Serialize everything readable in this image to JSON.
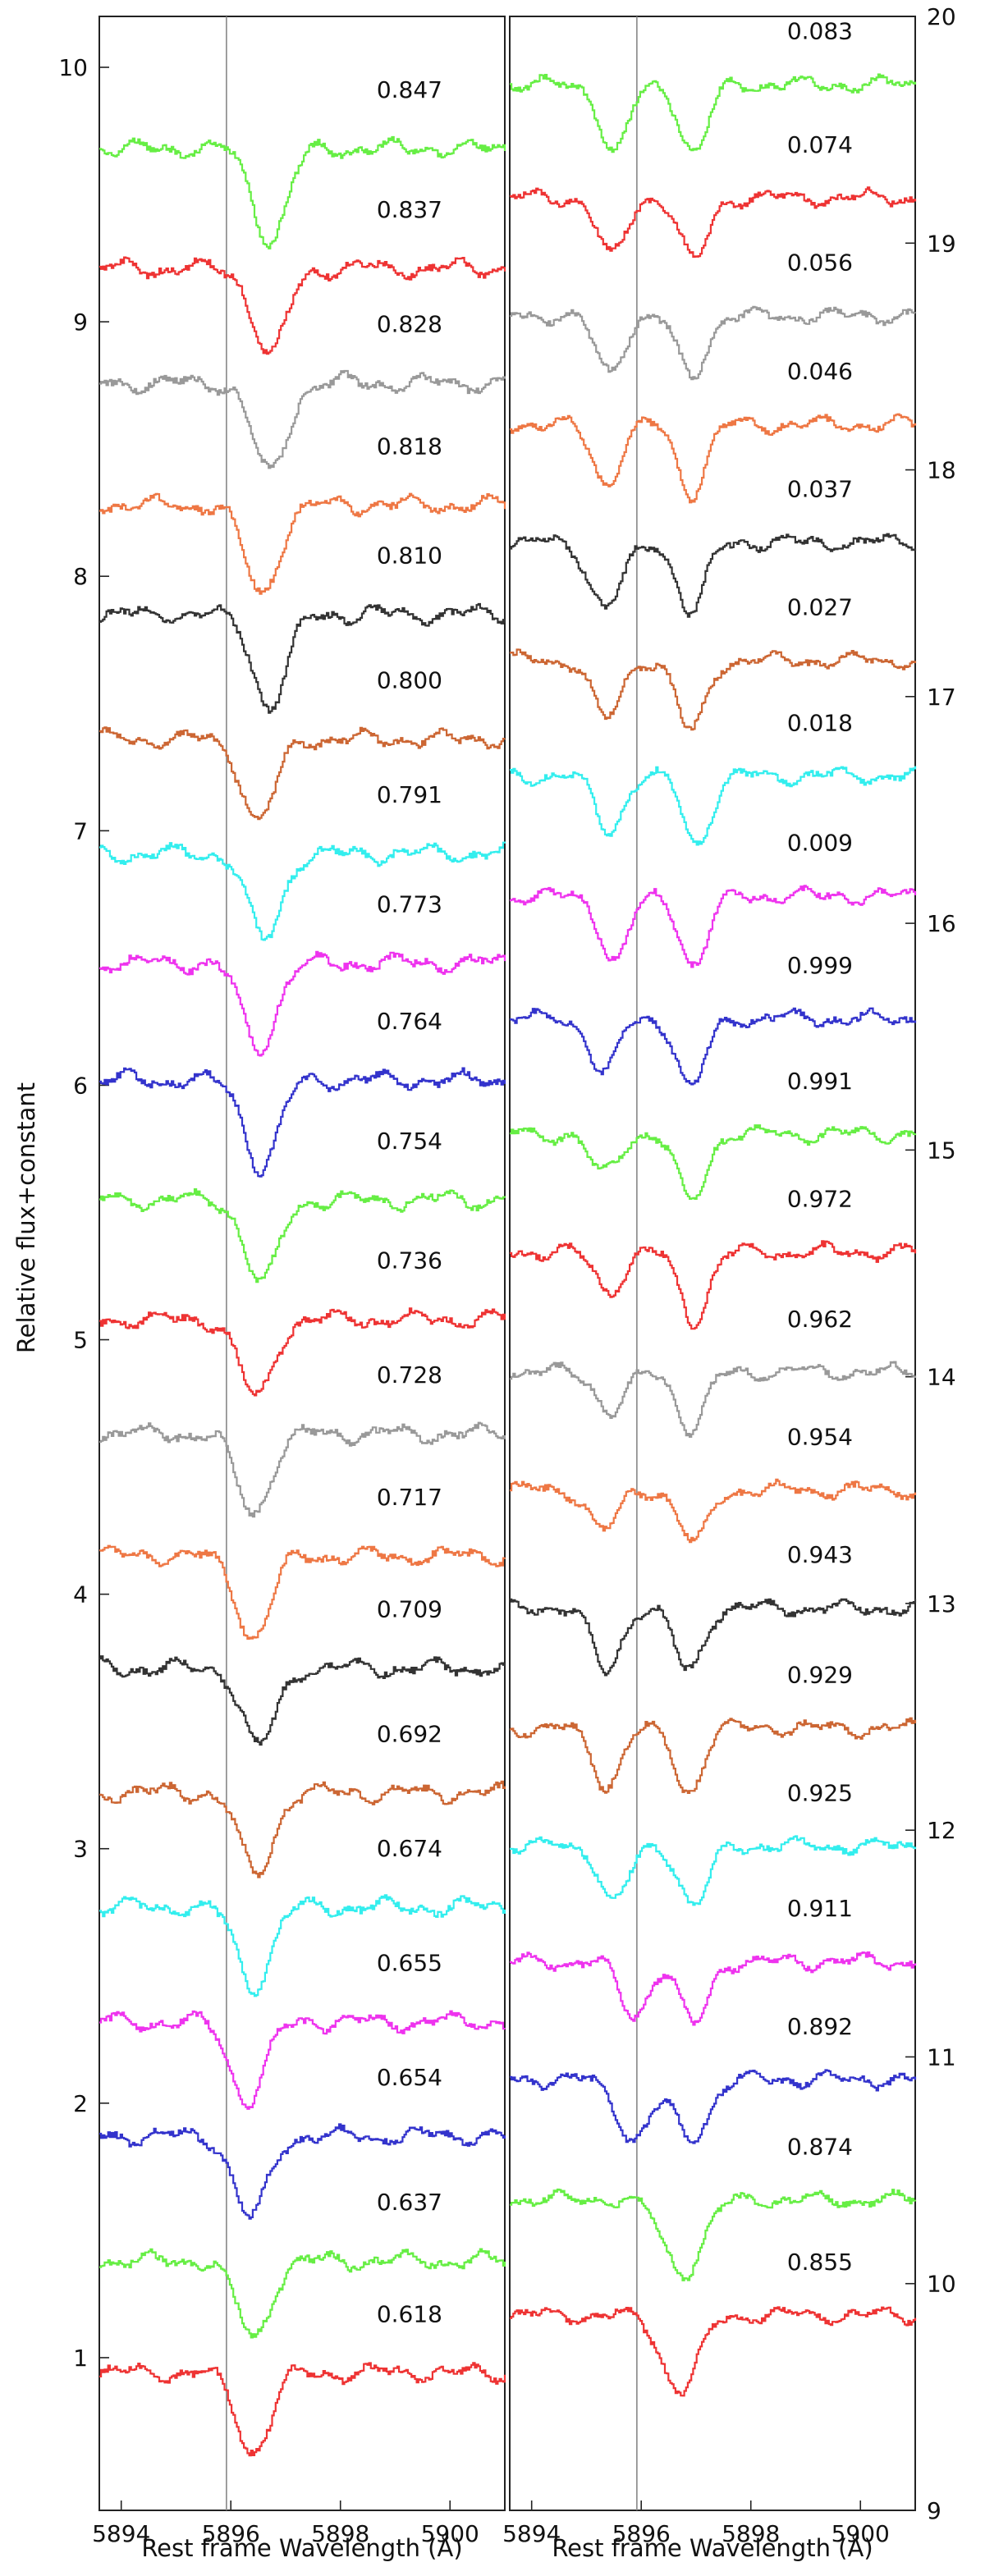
{
  "chart_data": [
    {
      "type": "line",
      "panel": "left",
      "xlabel": "Rest frame Wavelength (Å)",
      "ylabel": "Relative flux+constant",
      "xlim": [
        5893.6,
        5901.0
      ],
      "ylim": [
        0.4,
        10.2
      ],
      "x_ticks": [
        5894,
        5896,
        5898,
        5900
      ],
      "y_ticks": [
        1,
        2,
        3,
        4,
        5,
        6,
        7,
        8,
        9,
        10
      ],
      "y_axis_side": "left",
      "reference_line_x": 5895.92,
      "series": [
        {
          "name": "0.847",
          "color": "#66ee44",
          "baseline": 9.68,
          "dips": [
            {
              "center": 5896.7,
              "depth": 0.36,
              "width": 0.3
            }
          ]
        },
        {
          "name": "0.837",
          "color": "#ee3333",
          "baseline": 9.21,
          "dips": [
            {
              "center": 5896.7,
              "depth": 0.34,
              "width": 0.3
            }
          ]
        },
        {
          "name": "0.828",
          "color": "#999999",
          "baseline": 8.76,
          "dips": [
            {
              "center": 5896.7,
              "depth": 0.36,
              "width": 0.3
            }
          ]
        },
        {
          "name": "0.818",
          "color": "#ee7744",
          "baseline": 8.28,
          "dips": [
            {
              "center": 5896.55,
              "depth": 0.35,
              "width": 0.3
            }
          ]
        },
        {
          "name": "0.810",
          "color": "#333333",
          "baseline": 7.85,
          "dips": [
            {
              "center": 5896.7,
              "depth": 0.36,
              "width": 0.3
            }
          ]
        },
        {
          "name": "0.800",
          "color": "#cc6633",
          "baseline": 7.36,
          "dips": [
            {
              "center": 5896.5,
              "depth": 0.32,
              "width": 0.3
            }
          ]
        },
        {
          "name": "0.791",
          "color": "#33eeee",
          "baseline": 6.91,
          "dips": [
            {
              "center": 5896.6,
              "depth": 0.34,
              "width": 0.3
            }
          ]
        },
        {
          "name": "0.773",
          "color": "#ee33ee",
          "baseline": 6.48,
          "dips": [
            {
              "center": 5896.5,
              "depth": 0.34,
              "width": 0.3
            }
          ]
        },
        {
          "name": "0.764",
          "color": "#3333cc",
          "baseline": 6.02,
          "dips": [
            {
              "center": 5896.55,
              "depth": 0.34,
              "width": 0.3
            }
          ]
        },
        {
          "name": "0.754",
          "color": "#66ee44",
          "baseline": 5.55,
          "dips": [
            {
              "center": 5896.55,
              "depth": 0.33,
              "width": 0.3
            }
          ]
        },
        {
          "name": "0.736",
          "color": "#ee3333",
          "baseline": 5.08,
          "dips": [
            {
              "center": 5896.45,
              "depth": 0.31,
              "width": 0.3
            }
          ]
        },
        {
          "name": "0.728",
          "color": "#999999",
          "baseline": 4.63,
          "dips": [
            {
              "center": 5896.4,
              "depth": 0.31,
              "width": 0.3
            }
          ]
        },
        {
          "name": "0.717",
          "color": "#ee7744",
          "baseline": 4.15,
          "dips": [
            {
              "center": 5896.4,
              "depth": 0.32,
              "width": 0.3
            }
          ]
        },
        {
          "name": "0.709",
          "color": "#333333",
          "baseline": 3.71,
          "dips": [
            {
              "center": 5896.5,
              "depth": 0.31,
              "width": 0.3
            }
          ]
        },
        {
          "name": "0.692",
          "color": "#cc6633",
          "baseline": 3.22,
          "dips": [
            {
              "center": 5896.45,
              "depth": 0.32,
              "width": 0.3
            }
          ]
        },
        {
          "name": "0.674",
          "color": "#33eeee",
          "baseline": 2.77,
          "dips": [
            {
              "center": 5896.4,
              "depth": 0.31,
              "width": 0.3
            }
          ]
        },
        {
          "name": "0.655",
          "color": "#ee33ee",
          "baseline": 2.32,
          "dips": [
            {
              "center": 5896.3,
              "depth": 0.31,
              "width": 0.3
            }
          ]
        },
        {
          "name": "0.654",
          "color": "#3333cc",
          "baseline": 1.87,
          "dips": [
            {
              "center": 5896.35,
              "depth": 0.32,
              "width": 0.3
            }
          ]
        },
        {
          "name": "0.637",
          "color": "#66ee44",
          "baseline": 1.38,
          "dips": [
            {
              "center": 5896.4,
              "depth": 0.3,
              "width": 0.3
            }
          ]
        },
        {
          "name": "0.618",
          "color": "#ee3333",
          "baseline": 0.94,
          "dips": [
            {
              "center": 5896.4,
              "depth": 0.31,
              "width": 0.3
            }
          ]
        }
      ]
    },
    {
      "type": "line",
      "panel": "right",
      "xlabel": "Rest frame Wavelength (Å)",
      "ylabel": "",
      "xlim": [
        5893.6,
        5901.0
      ],
      "ylim": [
        9.0,
        20.0
      ],
      "x_ticks": [
        5894,
        5896,
        5898,
        5900
      ],
      "y_ticks": [
        9,
        10,
        11,
        12,
        13,
        14,
        15,
        16,
        17,
        18,
        19,
        20
      ],
      "y_axis_side": "right",
      "reference_line_x": 5895.92,
      "series": [
        {
          "name": "0.083",
          "color": "#66ee44",
          "baseline": 19.7,
          "dips": [
            {
              "center": 5895.5,
              "depth": 0.3,
              "width": 0.25
            },
            {
              "center": 5896.95,
              "depth": 0.3,
              "width": 0.25
            }
          ]
        },
        {
          "name": "0.074",
          "color": "#ee3333",
          "baseline": 19.2,
          "dips": [
            {
              "center": 5895.45,
              "depth": 0.26,
              "width": 0.25
            },
            {
              "center": 5896.95,
              "depth": 0.28,
              "width": 0.25
            }
          ]
        },
        {
          "name": "0.056",
          "color": "#999999",
          "baseline": 18.68,
          "dips": [
            {
              "center": 5895.4,
              "depth": 0.25,
              "width": 0.25
            },
            {
              "center": 5896.9,
              "depth": 0.27,
              "width": 0.25
            }
          ]
        },
        {
          "name": "0.046",
          "color": "#ee7744",
          "baseline": 18.2,
          "dips": [
            {
              "center": 5895.35,
              "depth": 0.26,
              "width": 0.25
            },
            {
              "center": 5896.9,
              "depth": 0.3,
              "width": 0.25
            }
          ]
        },
        {
          "name": "0.037",
          "color": "#333333",
          "baseline": 17.68,
          "dips": [
            {
              "center": 5895.35,
              "depth": 0.28,
              "width": 0.3
            },
            {
              "center": 5896.9,
              "depth": 0.31,
              "width": 0.25
            }
          ]
        },
        {
          "name": "0.027",
          "color": "#cc6633",
          "baseline": 17.16,
          "dips": [
            {
              "center": 5895.35,
              "depth": 0.26,
              "width": 0.25
            },
            {
              "center": 5896.9,
              "depth": 0.32,
              "width": 0.25
            }
          ]
        },
        {
          "name": "0.018",
          "color": "#33eeee",
          "baseline": 16.65,
          "dips": [
            {
              "center": 5895.4,
              "depth": 0.24,
              "width": 0.25
            },
            {
              "center": 5897.0,
              "depth": 0.3,
              "width": 0.25
            }
          ]
        },
        {
          "name": "0.009",
          "color": "#ee33ee",
          "baseline": 16.12,
          "dips": [
            {
              "center": 5895.5,
              "depth": 0.28,
              "width": 0.25
            },
            {
              "center": 5896.95,
              "depth": 0.3,
              "width": 0.25
            }
          ]
        },
        {
          "name": "0.999",
          "color": "#3333cc",
          "baseline": 15.58,
          "dips": [
            {
              "center": 5895.3,
              "depth": 0.24,
              "width": 0.25
            },
            {
              "center": 5896.9,
              "depth": 0.31,
              "width": 0.25
            }
          ]
        },
        {
          "name": "0.991",
          "color": "#66ee44",
          "baseline": 15.07,
          "dips": [
            {
              "center": 5895.3,
              "depth": 0.18,
              "width": 0.25
            },
            {
              "center": 5896.9,
              "depth": 0.3,
              "width": 0.25
            }
          ]
        },
        {
          "name": "0.972",
          "color": "#ee3333",
          "baseline": 14.55,
          "dips": [
            {
              "center": 5895.4,
              "depth": 0.17,
              "width": 0.25
            },
            {
              "center": 5896.95,
              "depth": 0.3,
              "width": 0.25
            }
          ]
        },
        {
          "name": "0.962",
          "color": "#999999",
          "baseline": 14.02,
          "dips": [
            {
              "center": 5895.45,
              "depth": 0.18,
              "width": 0.25
            },
            {
              "center": 5896.9,
              "depth": 0.25,
              "width": 0.25
            }
          ]
        },
        {
          "name": "0.954",
          "color": "#ee7744",
          "baseline": 13.5,
          "dips": [
            {
              "center": 5895.3,
              "depth": 0.18,
              "width": 0.25
            },
            {
              "center": 5896.95,
              "depth": 0.24,
              "width": 0.25
            }
          ]
        },
        {
          "name": "0.943",
          "color": "#333333",
          "baseline": 12.98,
          "dips": [
            {
              "center": 5895.35,
              "depth": 0.28,
              "width": 0.25
            },
            {
              "center": 5896.85,
              "depth": 0.28,
              "width": 0.25
            }
          ]
        },
        {
          "name": "0.929",
          "color": "#cc6633",
          "baseline": 12.45,
          "dips": [
            {
              "center": 5895.35,
              "depth": 0.25,
              "width": 0.25
            },
            {
              "center": 5896.85,
              "depth": 0.28,
              "width": 0.25
            }
          ]
        },
        {
          "name": "0.925",
          "color": "#33eeee",
          "baseline": 11.93,
          "dips": [
            {
              "center": 5895.5,
              "depth": 0.25,
              "width": 0.25
            },
            {
              "center": 5896.95,
              "depth": 0.27,
              "width": 0.25
            }
          ]
        },
        {
          "name": "0.911",
          "color": "#ee33ee",
          "baseline": 11.42,
          "dips": [
            {
              "center": 5895.85,
              "depth": 0.24,
              "width": 0.25
            },
            {
              "center": 5896.95,
              "depth": 0.28,
              "width": 0.25
            }
          ]
        },
        {
          "name": "0.892",
          "color": "#3333cc",
          "baseline": 10.9,
          "dips": [
            {
              "center": 5895.85,
              "depth": 0.26,
              "width": 0.3
            },
            {
              "center": 5896.9,
              "depth": 0.26,
              "width": 0.3
            }
          ]
        },
        {
          "name": "0.874",
          "color": "#66ee44",
          "baseline": 10.37,
          "dips": [
            {
              "center": 5896.75,
              "depth": 0.32,
              "width": 0.35
            }
          ]
        },
        {
          "name": "0.855",
          "color": "#ee3333",
          "baseline": 9.86,
          "dips": [
            {
              "center": 5896.7,
              "depth": 0.33,
              "width": 0.33
            }
          ]
        }
      ]
    }
  ]
}
